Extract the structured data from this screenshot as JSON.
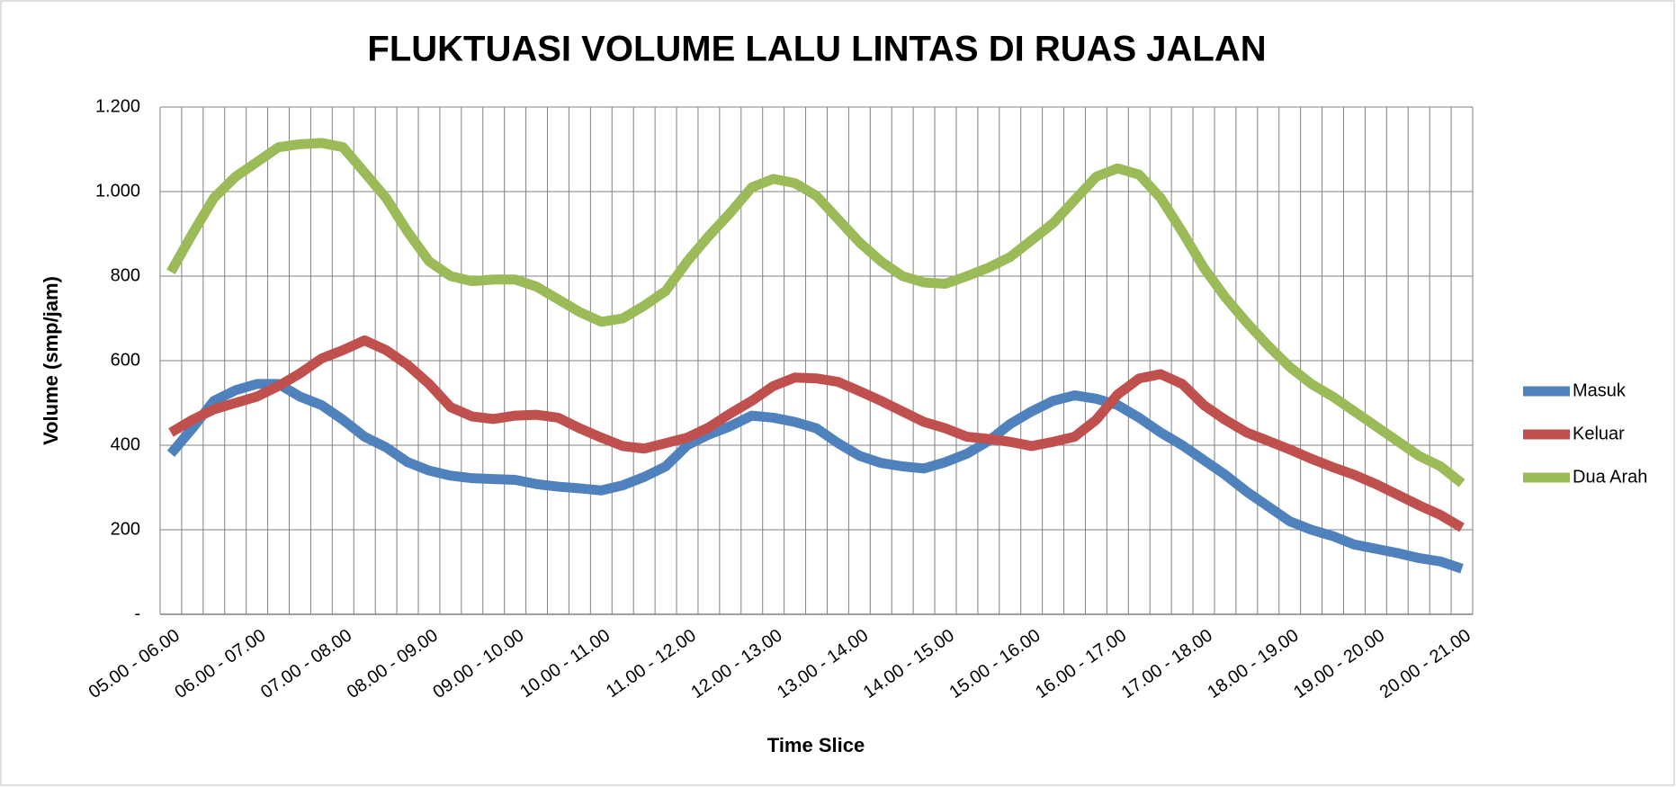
{
  "chart_data": {
    "type": "line",
    "title": "FLUKTUASI VOLUME LALU LINTAS DI RUAS JALAN",
    "x_label": "Time Slice",
    "y_label": "Volume (smp/jam)",
    "categories": [
      "05.00 - 06.00",
      null,
      null,
      null,
      "06.00 - 07.00",
      null,
      null,
      null,
      "07.00 - 08.00",
      null,
      null,
      null,
      "08.00 - 09.00",
      null,
      null,
      null,
      "09.00 - 10.00",
      null,
      null,
      null,
      "10.00 - 11.00",
      null,
      null,
      null,
      "11.00 - 12.00",
      null,
      null,
      null,
      "12.00 - 13.00",
      null,
      null,
      null,
      "13.00 - 14.00",
      null,
      null,
      null,
      "14.00 - 15.00",
      null,
      null,
      null,
      "15.00 - 16.00",
      null,
      null,
      null,
      "16.00 - 17.00",
      null,
      null,
      null,
      "17.00 - 18.00",
      null,
      null,
      null,
      "18.00 - 19.00",
      null,
      null,
      null,
      "19.00 - 20.00",
      null,
      null,
      null,
      "20.00 - 21.00"
    ],
    "series": [
      {
        "name": "Masuk",
        "color": "#4f81bd",
        "values": [
          380,
          440,
          505,
          530,
          545,
          545,
          515,
          495,
          460,
          420,
          395,
          360,
          340,
          328,
          322,
          320,
          318,
          308,
          302,
          298,
          293,
          305,
          325,
          350,
          400,
          425,
          445,
          470,
          465,
          455,
          440,
          405,
          375,
          358,
          350,
          345,
          360,
          380,
          410,
          450,
          480,
          505,
          518,
          510,
          495,
          465,
          430,
          400,
          365,
          330,
          290,
          255,
          220,
          200,
          185,
          165,
          155,
          145,
          133,
          125,
          108
        ]
      },
      {
        "name": "Keluar",
        "color": "#c0504d",
        "values": [
          430,
          460,
          485,
          500,
          515,
          540,
          570,
          605,
          625,
          648,
          625,
          590,
          545,
          490,
          468,
          462,
          470,
          472,
          465,
          440,
          418,
          398,
          392,
          405,
          418,
          442,
          475,
          505,
          540,
          560,
          558,
          550,
          528,
          505,
          480,
          455,
          440,
          420,
          415,
          408,
          398,
          408,
          420,
          460,
          520,
          558,
          568,
          545,
          495,
          460,
          430,
          410,
          390,
          368,
          348,
          330,
          308,
          283,
          258,
          235,
          205
        ]
      },
      {
        "name": "Dua Arah",
        "color": "#9bbb59",
        "values": [
          810,
          900,
          985,
          1035,
          1070,
          1105,
          1112,
          1115,
          1105,
          1045,
          985,
          905,
          835,
          800,
          788,
          792,
          792,
          775,
          745,
          715,
          692,
          700,
          730,
          765,
          835,
          895,
          950,
          1010,
          1030,
          1020,
          990,
          935,
          880,
          835,
          800,
          785,
          782,
          800,
          820,
          845,
          885,
          925,
          980,
          1035,
          1055,
          1040,
          985,
          905,
          820,
          750,
          690,
          635,
          585,
          545,
          515,
          480,
          445,
          410,
          375,
          350,
          310
        ]
      }
    ],
    "ylim": [
      0,
      1200
    ],
    "yticks": [
      {
        "value": 0,
        "label": "-"
      },
      200,
      400,
      600,
      800,
      {
        "value": 1000,
        "label": "1.000"
      },
      {
        "value": 1200,
        "label": "1.200"
      }
    ],
    "grid": true,
    "legend": "right"
  }
}
